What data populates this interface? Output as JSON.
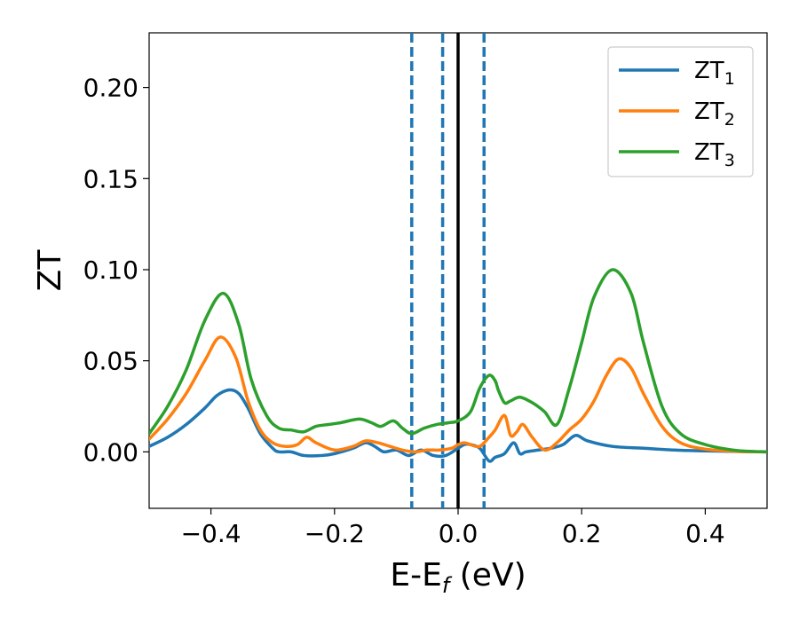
{
  "chart_data": {
    "type": "line",
    "xlabel_main": "E-E",
    "xlabel_sub": "f",
    "xlabel_unit": " (eV)",
    "ylabel": "ZT",
    "xlim": [
      -0.5,
      0.5
    ],
    "ylim": [
      -0.031,
      0.23
    ],
    "x_ticks": [
      -0.4,
      -0.2,
      0.0,
      0.2,
      0.4
    ],
    "x_tick_labels": [
      "−0.4",
      "−0.2",
      "0.0",
      "0.2",
      "0.4"
    ],
    "y_ticks": [
      0.0,
      0.05,
      0.1,
      0.15,
      0.2
    ],
    "y_tick_labels": [
      "0.00",
      "0.05",
      "0.10",
      "0.15",
      "0.20"
    ],
    "grid": false,
    "legend_position": "top-right",
    "vertical_lines": [
      {
        "x": -0.075,
        "style": "dashed",
        "color": "#1f77b4"
      },
      {
        "x": -0.025,
        "style": "dashed",
        "color": "#1f77b4"
      },
      {
        "x": 0.0,
        "style": "solid",
        "color": "#000000"
      },
      {
        "x": 0.042,
        "style": "dashed",
        "color": "#1f77b4"
      }
    ],
    "series": [
      {
        "name": "ZT",
        "subscript": "1",
        "color": "#1f77b4",
        "x": [
          -0.5,
          -0.47,
          -0.44,
          -0.41,
          -0.39,
          -0.37,
          -0.355,
          -0.34,
          -0.32,
          -0.3,
          -0.29,
          -0.27,
          -0.25,
          -0.22,
          -0.2,
          -0.17,
          -0.15,
          -0.135,
          -0.12,
          -0.1,
          -0.08,
          -0.06,
          -0.04,
          -0.02,
          0.0,
          0.01,
          0.02,
          0.035,
          0.05,
          0.06,
          0.075,
          0.09,
          0.1,
          0.11,
          0.13,
          0.15,
          0.17,
          0.19,
          0.21,
          0.25,
          0.3,
          0.35,
          0.4,
          0.45,
          0.5
        ],
        "y": [
          0.003,
          0.008,
          0.015,
          0.024,
          0.031,
          0.034,
          0.032,
          0.024,
          0.01,
          0.002,
          0.0,
          0.0,
          -0.002,
          -0.002,
          -0.001,
          0.002,
          0.005,
          0.003,
          0.0,
          0.001,
          -0.002,
          0.001,
          -0.002,
          -0.002,
          0.002,
          0.004,
          0.004,
          0.002,
          -0.005,
          -0.003,
          -0.001,
          0.005,
          -0.001,
          0.0,
          0.001,
          0.002,
          0.004,
          0.009,
          0.006,
          0.003,
          0.002,
          0.001,
          0.0005,
          0.0002,
          0.0
        ]
      },
      {
        "name": "ZT",
        "subscript": "2",
        "color": "#ff7f0e",
        "x": [
          -0.5,
          -0.47,
          -0.44,
          -0.41,
          -0.385,
          -0.36,
          -0.34,
          -0.32,
          -0.3,
          -0.28,
          -0.26,
          -0.245,
          -0.23,
          -0.2,
          -0.17,
          -0.15,
          -0.13,
          -0.11,
          -0.09,
          -0.07,
          -0.05,
          -0.03,
          -0.01,
          0.0,
          0.01,
          0.02,
          0.035,
          0.05,
          0.06,
          0.075,
          0.085,
          0.095,
          0.105,
          0.12,
          0.14,
          0.16,
          0.18,
          0.2,
          0.22,
          0.24,
          0.26,
          0.28,
          0.3,
          0.33,
          0.36,
          0.4,
          0.45,
          0.5
        ],
        "y": [
          0.007,
          0.018,
          0.032,
          0.05,
          0.063,
          0.052,
          0.028,
          0.012,
          0.005,
          0.003,
          0.004,
          0.008,
          0.005,
          0.001,
          0.003,
          0.006,
          0.005,
          0.003,
          0.001,
          0.0,
          0.001,
          0.001,
          0.002,
          0.004,
          0.005,
          0.004,
          0.003,
          0.008,
          0.012,
          0.02,
          0.009,
          0.011,
          0.015,
          0.008,
          0.001,
          0.005,
          0.012,
          0.018,
          0.028,
          0.042,
          0.051,
          0.046,
          0.032,
          0.014,
          0.005,
          0.0015,
          0.0003,
          0.0
        ]
      },
      {
        "name": "ZT",
        "subscript": "3",
        "color": "#2ca02c",
        "x": [
          -0.5,
          -0.47,
          -0.44,
          -0.41,
          -0.38,
          -0.355,
          -0.335,
          -0.31,
          -0.29,
          -0.27,
          -0.25,
          -0.23,
          -0.21,
          -0.19,
          -0.16,
          -0.14,
          -0.125,
          -0.105,
          -0.09,
          -0.075,
          -0.055,
          -0.035,
          -0.015,
          0.0,
          0.02,
          0.035,
          0.05,
          0.06,
          0.065,
          0.075,
          0.085,
          0.1,
          0.12,
          0.14,
          0.16,
          0.18,
          0.2,
          0.22,
          0.25,
          0.28,
          0.3,
          0.33,
          0.36,
          0.4,
          0.45,
          0.5
        ],
        "y": [
          0.01,
          0.025,
          0.045,
          0.072,
          0.087,
          0.07,
          0.04,
          0.02,
          0.013,
          0.012,
          0.011,
          0.014,
          0.015,
          0.016,
          0.018,
          0.016,
          0.014,
          0.017,
          0.013,
          0.01,
          0.013,
          0.015,
          0.016,
          0.017,
          0.022,
          0.035,
          0.042,
          0.039,
          0.034,
          0.027,
          0.028,
          0.03,
          0.027,
          0.022,
          0.015,
          0.035,
          0.06,
          0.085,
          0.1,
          0.087,
          0.06,
          0.025,
          0.01,
          0.004,
          0.0008,
          0.0
        ]
      }
    ]
  }
}
